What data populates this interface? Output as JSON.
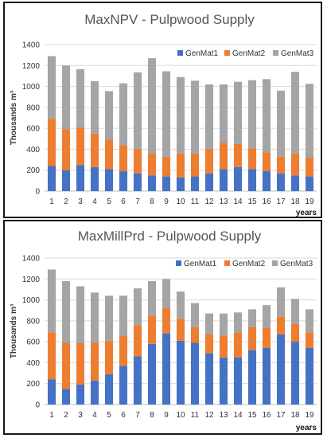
{
  "colors": {
    "GenMat1": "#4472c4",
    "GenMat2": "#ed7d31",
    "GenMat3": "#a5a5a5"
  },
  "chart_data": [
    {
      "type": "bar",
      "stacked": true,
      "title": "MaxNPV - Pulpwood Supply",
      "ylabel": "Thousands m³",
      "xlabel": "years",
      "ylim": [
        0,
        1400
      ],
      "yticks": [
        0,
        200,
        400,
        600,
        800,
        1000,
        1200,
        1400
      ],
      "grid": true,
      "legend_position": "top-right",
      "categories": [
        "1",
        "2",
        "3",
        "4",
        "5",
        "6",
        "7",
        "8",
        "9",
        "10",
        "11",
        "12",
        "13",
        "14",
        "15",
        "16",
        "17",
        "18",
        "19"
      ],
      "series": [
        {
          "name": "GenMat1",
          "values": [
            240,
            200,
            250,
            230,
            210,
            190,
            170,
            150,
            140,
            130,
            140,
            170,
            210,
            230,
            210,
            190,
            170,
            150,
            140
          ]
        },
        {
          "name": "GenMat2",
          "values": [
            450,
            390,
            355,
            320,
            280,
            250,
            230,
            210,
            190,
            230,
            220,
            230,
            250,
            220,
            200,
            180,
            160,
            210,
            180
          ]
        },
        {
          "name": "GenMat3",
          "values": [
            600,
            610,
            560,
            500,
            465,
            590,
            735,
            910,
            815,
            730,
            695,
            620,
            560,
            595,
            650,
            700,
            630,
            780,
            705
          ]
        }
      ]
    },
    {
      "type": "bar",
      "stacked": true,
      "title": "MaxMillPrd - Pulpwood Supply",
      "ylabel": "Thousands m³",
      "xlabel": "years",
      "ylim": [
        0,
        1400
      ],
      "yticks": [
        0,
        200,
        400,
        600,
        800,
        1000,
        1200,
        1400
      ],
      "grid": true,
      "legend_position": "top-right",
      "categories": [
        "1",
        "2",
        "3",
        "4",
        "5",
        "6",
        "7",
        "8",
        "9",
        "10",
        "11",
        "12",
        "13",
        "14",
        "15",
        "16",
        "17",
        "18",
        "19"
      ],
      "series": [
        {
          "name": "GenMat1",
          "values": [
            240,
            150,
            190,
            230,
            290,
            370,
            460,
            580,
            680,
            610,
            590,
            490,
            450,
            450,
            520,
            540,
            670,
            600,
            540
          ]
        },
        {
          "name": "GenMat2",
          "values": [
            450,
            440,
            400,
            360,
            320,
            290,
            300,
            270,
            240,
            210,
            150,
            180,
            210,
            240,
            220,
            190,
            170,
            170,
            150
          ]
        },
        {
          "name": "GenMat3",
          "values": [
            600,
            590,
            540,
            480,
            430,
            380,
            350,
            330,
            280,
            260,
            230,
            200,
            210,
            190,
            170,
            220,
            280,
            240,
            220
          ]
        }
      ]
    }
  ]
}
